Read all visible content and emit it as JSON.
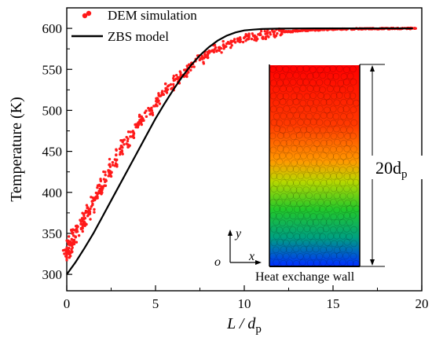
{
  "chart_data": {
    "type": "scatter",
    "title": "",
    "xlabel": {
      "main": "L / d",
      "sub": "p"
    },
    "ylabel": "Temperature (K)",
    "xlim": [
      0,
      20
    ],
    "ylim": [
      280,
      625
    ],
    "x_ticks": [
      0,
      5,
      10,
      15,
      20
    ],
    "y_ticks": [
      300,
      350,
      400,
      450,
      500,
      550,
      600
    ],
    "grid": false,
    "legend_position": "top-left",
    "series": [
      {
        "name": "DEM simulation",
        "kind": "scatter",
        "color": "#ff1a1a",
        "x": [
          0.05,
          0.1,
          0.2,
          0.3,
          0.5,
          0.7,
          0.9,
          1.1,
          1.3,
          1.5,
          1.8,
          2.0,
          2.3,
          2.6,
          3.0,
          3.3,
          3.6,
          4.0,
          4.3,
          4.6,
          5.0,
          5.4,
          5.8,
          6.2,
          6.6,
          7.0,
          7.5,
          8.0,
          8.5,
          9.0,
          9.5,
          10.0,
          10.5,
          11.0,
          11.5,
          12.0,
          12.5,
          13.0,
          13.5,
          14.0,
          14.5,
          15.0,
          15.5,
          16.0,
          16.5,
          17.0,
          17.5,
          18.0,
          18.5,
          19.0,
          19.5
        ],
        "y": [
          325,
          332,
          338,
          342,
          350,
          357,
          364,
          372,
          380,
          390,
          402,
          412,
          424,
          436,
          450,
          460,
          470,
          482,
          491,
          499,
          510,
          520,
          529,
          538,
          546,
          554,
          562,
          569,
          575,
          580,
          584,
          588,
          590,
          592,
          594,
          595,
          596,
          597,
          597.5,
          598,
          598.5,
          599,
          599,
          599.2,
          599.4,
          599.5,
          599.6,
          599.7,
          599.8,
          599.9,
          600
        ]
      },
      {
        "name": "ZBS model",
        "kind": "line",
        "color": "#000000",
        "x": [
          0,
          0.5,
          1,
          1.5,
          2,
          2.5,
          3,
          3.5,
          4,
          4.5,
          5,
          5.5,
          6,
          6.5,
          7,
          7.5,
          8,
          8.5,
          9,
          9.5,
          10,
          10.5,
          11,
          11.5,
          12,
          13,
          14,
          15,
          16,
          17,
          18,
          19,
          19.5
        ],
        "y": [
          300,
          315,
          332,
          350,
          370,
          390,
          410,
          430,
          450,
          470,
          490,
          508,
          525,
          541,
          555,
          567,
          577,
          585,
          591,
          595,
          597.5,
          598.5,
          599.2,
          599.5,
          599.7,
          599.9,
          600,
          600,
          600,
          600,
          600,
          600,
          600
        ]
      }
    ],
    "inset": {
      "label_height_main": "20d",
      "label_height_sub": "p",
      "label_bottom": "Heat exchange wall",
      "axis_y": "y",
      "axis_x": "x",
      "origin": "o",
      "gradient_colors": [
        "#ff0000",
        "#ff5a00",
        "#ffb000",
        "#c8e000",
        "#32cd32",
        "#00a86b",
        "#0047ff"
      ]
    }
  }
}
